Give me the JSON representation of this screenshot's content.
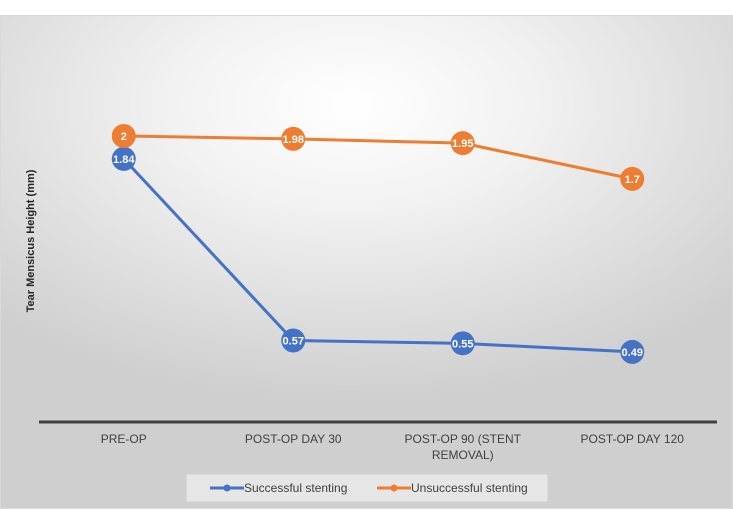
{
  "chart_data": {
    "type": "line",
    "title": "",
    "xlabel": "",
    "ylabel": "Tear Mensicus Height (mm)",
    "categories": [
      "PRE-OP",
      "POST-OP DAY 30",
      "POST-OP 90 (STENT REMOVAL)",
      "POST-OP DAY 120"
    ],
    "ylim": [
      0,
      2.2
    ],
    "grid": false,
    "legend_position": "bottom",
    "series": [
      {
        "name": "Successful stenting",
        "values": [
          1.84,
          0.57,
          0.55,
          0.49
        ],
        "labels": [
          "1.84",
          "0.57",
          "0.55",
          "0.49"
        ],
        "color": "#4472c4"
      },
      {
        "name": "Unsuccessful stenting",
        "values": [
          2,
          1.98,
          1.95,
          1.7
        ],
        "labels": [
          "2",
          "1.98",
          "1.95",
          "1.7"
        ],
        "color": "#ed7d31"
      }
    ]
  }
}
